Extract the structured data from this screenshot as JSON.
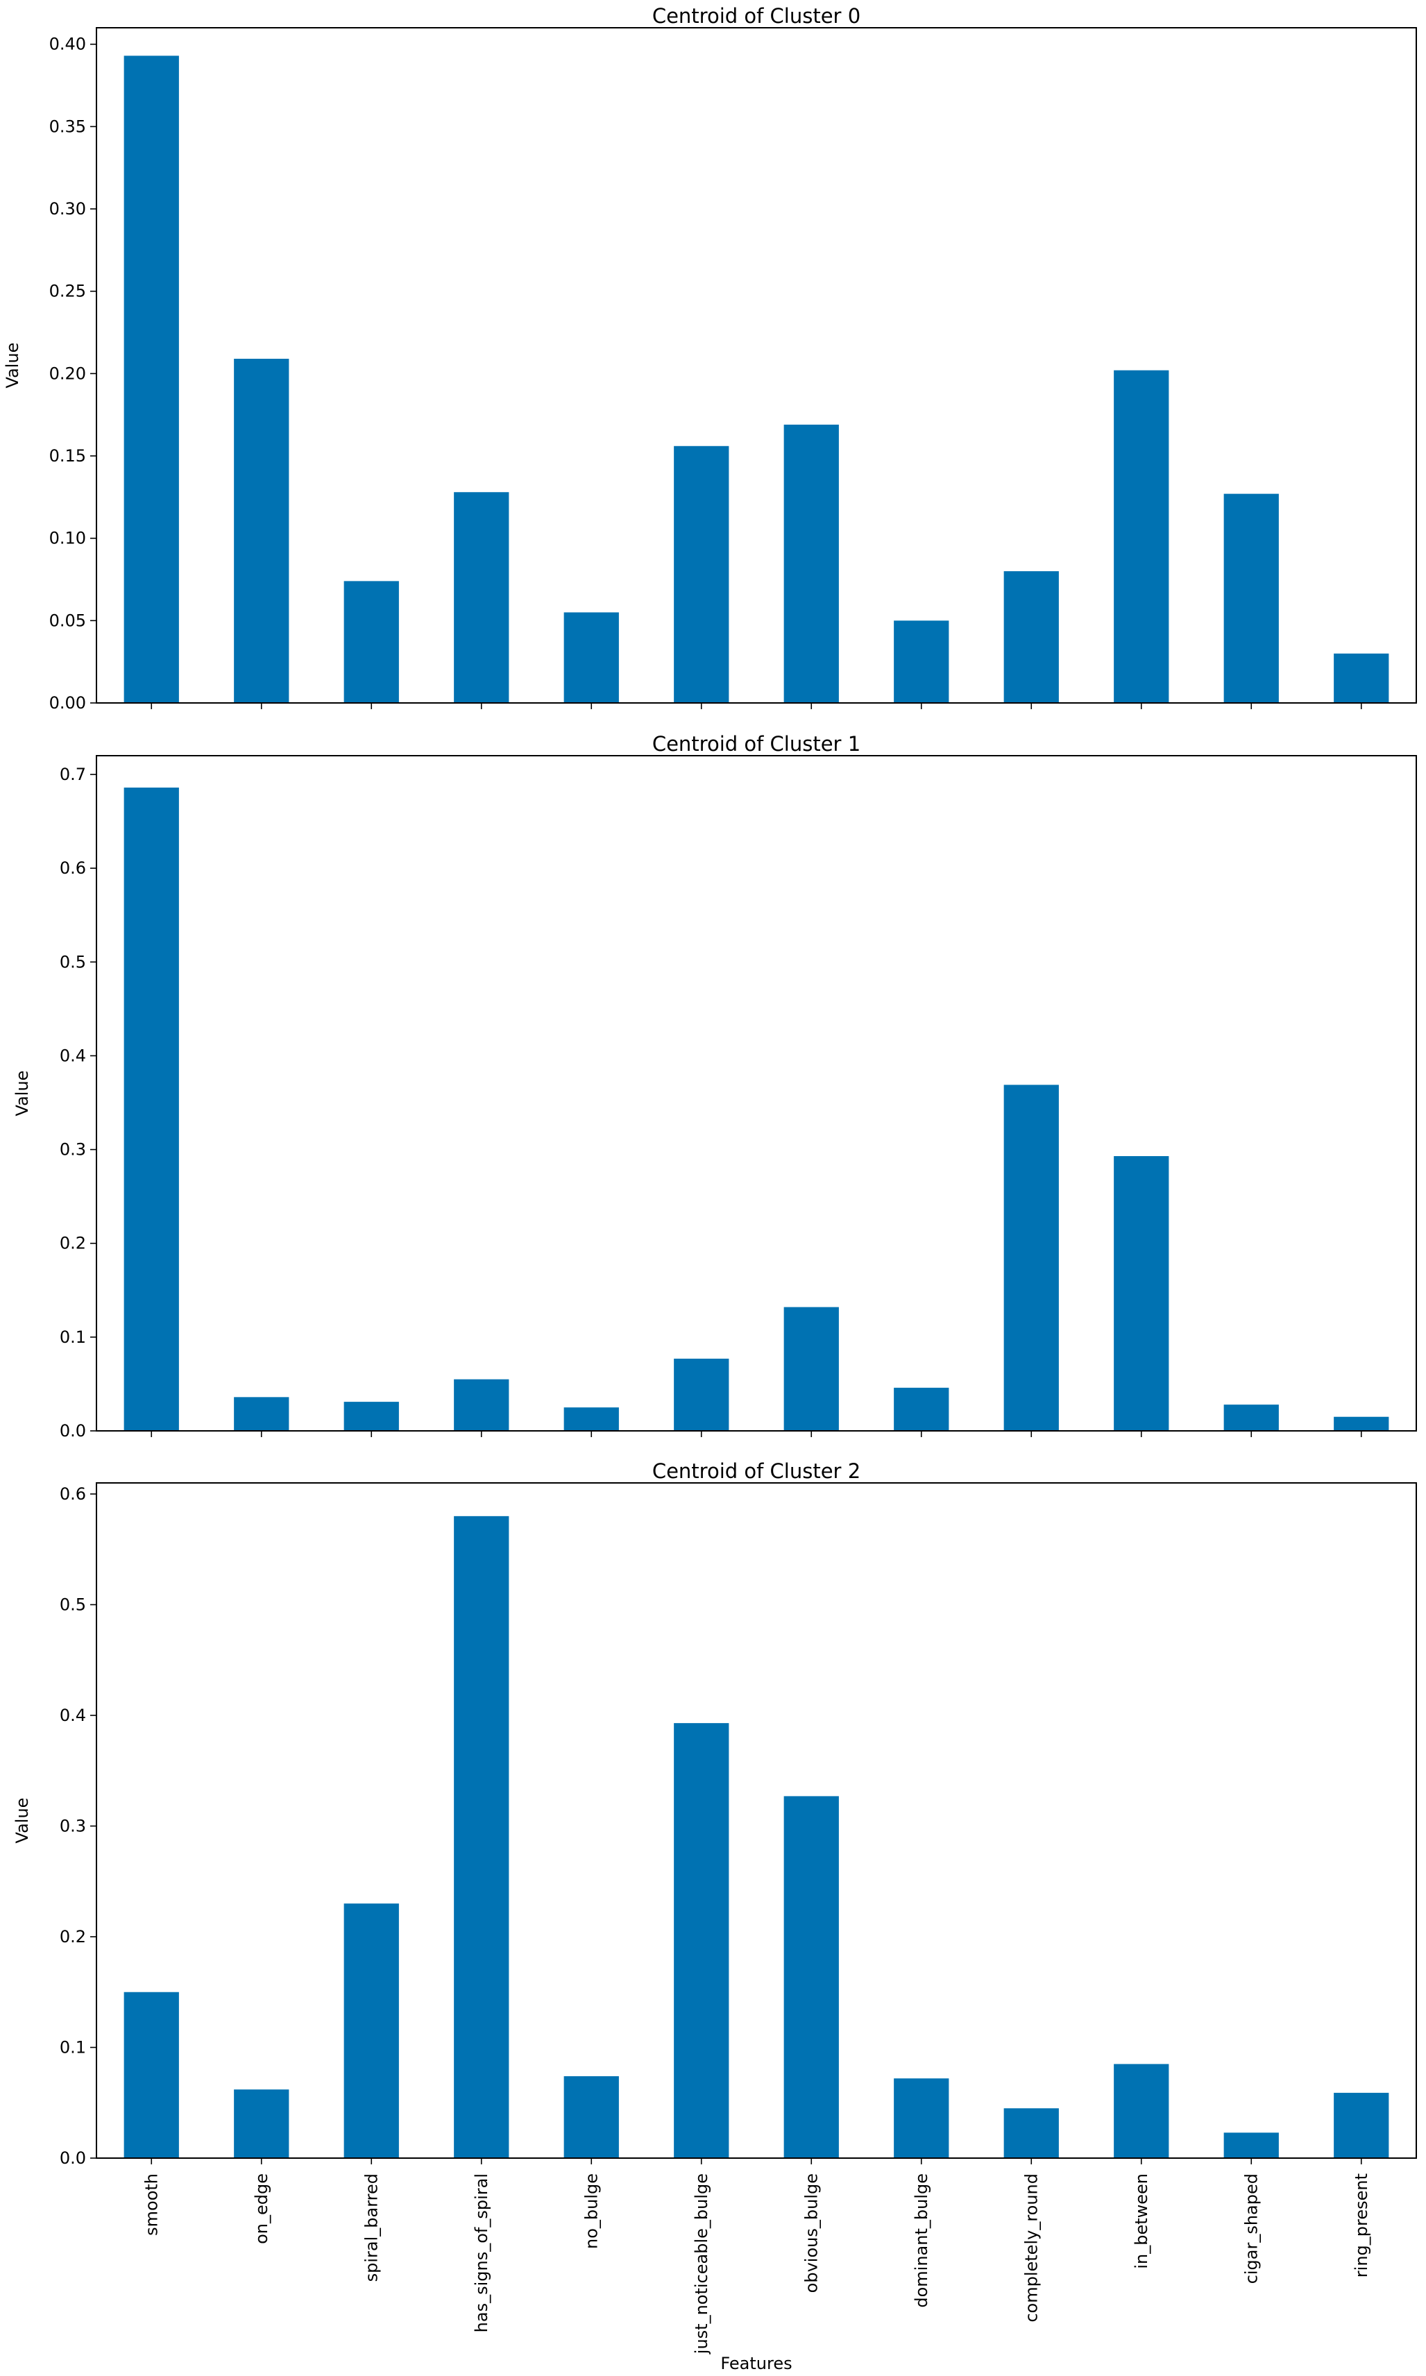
{
  "chart_data": [
    {
      "type": "bar",
      "title": "Centroid of Cluster 0",
      "xlabel": "",
      "ylabel": "Value",
      "ylim": [
        0,
        0.41
      ],
      "yticks": [
        "0.00",
        "0.05",
        "0.10",
        "0.15",
        "0.20",
        "0.25",
        "0.30",
        "0.35",
        "0.40"
      ],
      "ytick_values": [
        0,
        0.05,
        0.1,
        0.15,
        0.2,
        0.25,
        0.3,
        0.35,
        0.4
      ],
      "categories": [
        "smooth",
        "on_edge",
        "spiral_barred",
        "has_signs_of_spiral",
        "no_bulge",
        "just_noticeable_bulge",
        "obvious_bulge",
        "dominant_bulge",
        "completely_round",
        "in_between",
        "cigar_shaped",
        "ring_present"
      ],
      "values": [
        0.393,
        0.209,
        0.074,
        0.128,
        0.055,
        0.156,
        0.169,
        0.05,
        0.08,
        0.202,
        0.127,
        0.03
      ],
      "show_xticklabels": false,
      "color": "#0072b2"
    },
    {
      "type": "bar",
      "title": "Centroid of Cluster 1",
      "xlabel": "",
      "ylabel": "Value",
      "ylim": [
        0,
        0.72
      ],
      "yticks": [
        "0.0",
        "0.1",
        "0.2",
        "0.3",
        "0.4",
        "0.5",
        "0.6",
        "0.7"
      ],
      "ytick_values": [
        0,
        0.1,
        0.2,
        0.3,
        0.4,
        0.5,
        0.6,
        0.7
      ],
      "categories": [
        "smooth",
        "on_edge",
        "spiral_barred",
        "has_signs_of_spiral",
        "no_bulge",
        "just_noticeable_bulge",
        "obvious_bulge",
        "dominant_bulge",
        "completely_round",
        "in_between",
        "cigar_shaped",
        "ring_present"
      ],
      "values": [
        0.686,
        0.036,
        0.031,
        0.055,
        0.025,
        0.077,
        0.132,
        0.046,
        0.369,
        0.293,
        0.028,
        0.015
      ],
      "show_xticklabels": false,
      "color": "#0072b2"
    },
    {
      "type": "bar",
      "title": "Centroid of Cluster 2",
      "xlabel": "Features",
      "ylabel": "Value",
      "ylim": [
        0,
        0.61
      ],
      "yticks": [
        "0.0",
        "0.1",
        "0.2",
        "0.3",
        "0.4",
        "0.5",
        "0.6"
      ],
      "ytick_values": [
        0,
        0.1,
        0.2,
        0.3,
        0.4,
        0.5,
        0.6
      ],
      "categories": [
        "smooth",
        "on_edge",
        "spiral_barred",
        "has_signs_of_spiral",
        "no_bulge",
        "just_noticeable_bulge",
        "obvious_bulge",
        "dominant_bulge",
        "completely_round",
        "in_between",
        "cigar_shaped",
        "ring_present"
      ],
      "values": [
        0.15,
        0.062,
        0.23,
        0.58,
        0.074,
        0.393,
        0.327,
        0.072,
        0.045,
        0.085,
        0.023,
        0.059
      ],
      "show_xticklabels": true,
      "color": "#0072b2"
    }
  ]
}
